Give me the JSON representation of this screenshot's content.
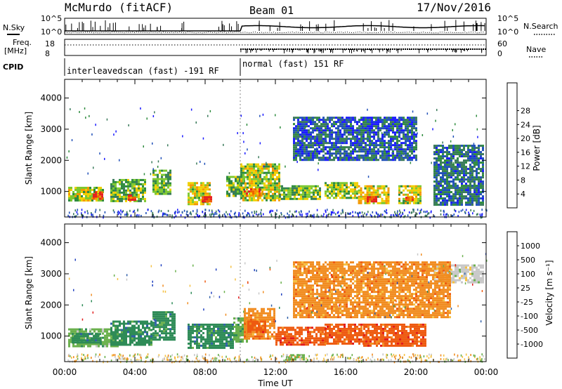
{
  "header": {
    "station": "McMurdo (fitACF)",
    "beam": "Beam 01",
    "date": "17/Nov/2016"
  },
  "top_panel": {
    "nsky_label": "N.Sky",
    "nsearch_label": "N.Search",
    "freq_label": "Freq.",
    "freq_unit": "[MHz]",
    "nave_label": "Nave",
    "cpid_label": "CPID",
    "left_scale_top": "10^5",
    "left_scale_bottom": "10^0",
    "right_scale_top": "10^5",
    "right_scale_bottom": "10^0",
    "freq_ticks": [
      "18",
      "8"
    ],
    "nave_ticks": [
      "60",
      "0"
    ],
    "cpid_segments": [
      {
        "label": "interleavedscan (fast) -191 RF",
        "start_h": 0,
        "end_h": 10
      },
      {
        "label": "normal (fast) 151 RF",
        "start_h": 10,
        "end_h": 24
      }
    ]
  },
  "x_axis": {
    "label": "Time UT",
    "ticks": [
      "00:00",
      "04:00",
      "08:00",
      "12:00",
      "16:00",
      "20:00",
      "00:00"
    ],
    "range_h": [
      0,
      24
    ]
  },
  "colors": {
    "power": [
      "#1a1aff",
      "#2050b8",
      "#3a7a5a",
      "#2e8b3e",
      "#7dc830",
      "#f0d000",
      "#f39800",
      "#f06000",
      "#e62020"
    ],
    "velocity": [
      "#e21a1a",
      "#ee5a10",
      "#f18c20",
      "#f5c040",
      "#c8c8c8",
      "#6ab04c",
      "#2e8b57",
      "#2f5fa8",
      "#1f3fbf"
    ]
  },
  "chart_data": [
    {
      "type": "heatmap",
      "name": "power-panel",
      "ylabel": "Slant Range [km]",
      "ylim": [
        180,
        4600
      ],
      "yticks": [
        "1000",
        "2000",
        "3000",
        "4000"
      ],
      "colorbar_label": "Power [dB]",
      "colorbar_ticks": [
        "4",
        "8",
        "12",
        "16",
        "20",
        "24",
        "28"
      ],
      "colorbar_range": [
        0,
        32
      ],
      "patches": [
        {
          "t0": 0.2,
          "t1": 2.2,
          "r0": 720,
          "r1": 1150,
          "level": 0.55
        },
        {
          "t0": 1.6,
          "t1": 2.2,
          "r0": 760,
          "r1": 1000,
          "level": 0.9
        },
        {
          "t0": 2.6,
          "t1": 4.6,
          "r0": 720,
          "r1": 1400,
          "level": 0.45
        },
        {
          "t0": 3.6,
          "t1": 4.0,
          "r0": 760,
          "r1": 900,
          "level": 0.85
        },
        {
          "t0": 5.0,
          "t1": 6.0,
          "r0": 900,
          "r1": 1700,
          "level": 0.45
        },
        {
          "t0": 7.0,
          "t1": 8.3,
          "r0": 620,
          "r1": 1300,
          "level": 0.6
        },
        {
          "t0": 7.8,
          "t1": 8.3,
          "r0": 650,
          "r1": 850,
          "level": 0.95
        },
        {
          "t0": 9.2,
          "t1": 10.2,
          "r0": 850,
          "r1": 1500,
          "level": 0.45
        },
        {
          "t0": 10.0,
          "t1": 12.2,
          "r0": 700,
          "r1": 1900,
          "level": 0.55
        },
        {
          "t0": 10.2,
          "t1": 11.2,
          "r0": 850,
          "r1": 1100,
          "level": 0.8
        },
        {
          "t0": 12.2,
          "t1": 14.6,
          "r0": 750,
          "r1": 1200,
          "level": 0.45
        },
        {
          "t0": 14.8,
          "t1": 16.6,
          "r0": 780,
          "r1": 1300,
          "level": 0.5
        },
        {
          "t0": 16.7,
          "t1": 18.5,
          "r0": 650,
          "r1": 1200,
          "level": 0.6
        },
        {
          "t0": 17.2,
          "t1": 17.8,
          "r0": 700,
          "r1": 850,
          "level": 0.95
        },
        {
          "t0": 19.0,
          "t1": 20.3,
          "r0": 650,
          "r1": 1200,
          "level": 0.55
        },
        {
          "t0": 19.4,
          "t1": 19.8,
          "r0": 700,
          "r1": 830,
          "level": 0.9
        },
        {
          "t0": 21.0,
          "t1": 23.8,
          "r0": 600,
          "r1": 2500,
          "level": 0.25
        },
        {
          "t0": 13.0,
          "t1": 20.0,
          "r0": 2000,
          "r1": 3400,
          "level": 0.2
        }
      ]
    },
    {
      "type": "heatmap",
      "name": "velocity-panel",
      "ylabel": "Slant Range [km]",
      "ylim": [
        180,
        4600
      ],
      "yticks": [
        "1000",
        "2000",
        "3000",
        "4000"
      ],
      "colorbar_label": "Velocity [m s⁻¹]",
      "colorbar_ticks": [
        "1000",
        "500",
        "100",
        "25",
        "-25",
        "-100",
        "-500",
        "-1000"
      ],
      "patches": [
        {
          "t0": 0.2,
          "t1": 3.0,
          "r0": 700,
          "r1": 1250,
          "level": 5
        },
        {
          "t0": 0.4,
          "t1": 2.0,
          "r0": 800,
          "r1": 1100,
          "level": 6
        },
        {
          "t0": 2.6,
          "t1": 5.0,
          "r0": 700,
          "r1": 1500,
          "level": 6
        },
        {
          "t0": 5.0,
          "t1": 6.3,
          "r0": 900,
          "r1": 1800,
          "level": 6
        },
        {
          "t0": 7.0,
          "t1": 9.6,
          "r0": 650,
          "r1": 1400,
          "level": 6
        },
        {
          "t0": 9.6,
          "t1": 10.4,
          "r0": 800,
          "r1": 1600,
          "level": 5
        },
        {
          "t0": 10.2,
          "t1": 12.0,
          "r0": 900,
          "r1": 1900,
          "level": 2
        },
        {
          "t0": 10.4,
          "t1": 11.4,
          "r0": 1100,
          "r1": 1500,
          "level": 1
        },
        {
          "t0": 12.0,
          "t1": 14.8,
          "r0": 700,
          "r1": 1300,
          "level": 1
        },
        {
          "t0": 14.8,
          "t1": 17.0,
          "r0": 750,
          "r1": 1400,
          "level": 1
        },
        {
          "t0": 17.0,
          "t1": 20.6,
          "r0": 700,
          "r1": 1400,
          "level": 1
        },
        {
          "t0": 12.6,
          "t1": 13.6,
          "r0": 280,
          "r1": 420,
          "level": 5
        },
        {
          "t0": 21.0,
          "t1": 23.8,
          "r0": 2700,
          "r1": 3300,
          "level": 4
        },
        {
          "t0": 13.0,
          "t1": 22.0,
          "r0": 1600,
          "r1": 3400,
          "level": 2
        }
      ]
    }
  ]
}
